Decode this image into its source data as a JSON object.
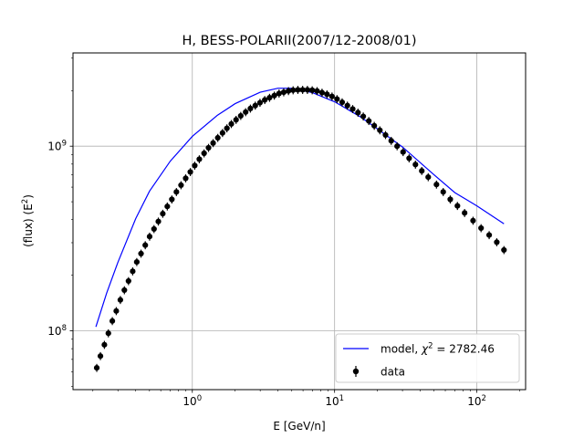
{
  "chart_data": {
    "type": "scatter",
    "title": "H, BESS-POLARII(2007/12-2008/01)",
    "xlabel": "E [GeV/n]",
    "ylabel": "(flux)  (E",
    "ylabel_sup": "2",
    "ylabel_tail": ")",
    "xscale": "log",
    "yscale": "log",
    "xlim": [
      0.145,
      220
    ],
    "ylim": [
      48000000,
      3200000000
    ],
    "grid": true,
    "legend_position": "lower-right",
    "x_ticks": [
      {
        "value": 1,
        "base": "10",
        "exp": "0"
      },
      {
        "value": 10,
        "base": "10",
        "exp": "1"
      },
      {
        "value": 100,
        "base": "10",
        "exp": "2"
      }
    ],
    "y_ticks": [
      {
        "value": 100000000,
        "base": "10",
        "exp": "8"
      },
      {
        "value": 1000000000,
        "base": "10",
        "exp": "9"
      }
    ],
    "series": [
      {
        "name": "model",
        "legend_label": "model, ",
        "legend_chi": "χ",
        "legend_chi_sup": "2",
        "legend_value": " = 2782.46",
        "style": "line",
        "color": "#0000ff",
        "x": [
          0.21,
          0.25,
          0.3,
          0.4,
          0.5,
          0.7,
          1.0,
          1.5,
          2.0,
          3.0,
          4.0,
          5.0,
          7.0,
          10.0,
          15.0,
          20.0,
          30.0,
          50.0,
          70.0,
          100.0,
          155.0
        ],
        "y": [
          105000000,
          160000000,
          235000000,
          405000000,
          570000000,
          830000000,
          1130000000,
          1470000000,
          1700000000,
          1960000000,
          2060000000,
          2060000000,
          1950000000,
          1740000000,
          1450000000,
          1240000000,
          990000000,
          700000000,
          560000000,
          475000000,
          380000000
        ]
      },
      {
        "name": "data",
        "legend_label": "data",
        "style": "errorbar",
        "color": "#000000",
        "x": [
          0.213,
          0.226,
          0.241,
          0.257,
          0.274,
          0.292,
          0.312,
          0.333,
          0.356,
          0.381,
          0.407,
          0.436,
          0.467,
          0.501,
          0.538,
          0.577,
          0.62,
          0.667,
          0.718,
          0.773,
          0.833,
          0.898,
          0.968,
          1.04,
          1.12,
          1.21,
          1.3,
          1.4,
          1.51,
          1.63,
          1.75,
          1.88,
          2.03,
          2.19,
          2.37,
          2.56,
          2.77,
          2.99,
          3.23,
          3.49,
          3.77,
          4.07,
          4.39,
          4.74,
          5.11,
          5.52,
          5.96,
          6.44,
          6.96,
          7.53,
          8.16,
          8.84,
          9.59,
          10.4,
          11.3,
          12.3,
          13.4,
          14.6,
          15.9,
          17.4,
          19.0,
          20.8,
          22.8,
          25.0,
          27.5,
          30.3,
          33.4,
          37.0,
          41.0,
          45.5,
          52.0,
          58.0,
          65.0,
          73.0,
          82.0,
          94.0,
          107.0,
          122.0,
          138.0,
          155.0
        ],
        "y": [
          63000000,
          73000000,
          84000000,
          97000000,
          113000000,
          128000000,
          147000000,
          166000000,
          186000000,
          210000000,
          236000000,
          262000000,
          291000000,
          324000000,
          356000000,
          391000000,
          431000000,
          472000000,
          515000000,
          565000000,
          615000000,
          670000000,
          725000000,
          785000000,
          850000000,
          915000000,
          980000000,
          1040000000,
          1110000000,
          1180000000,
          1250000000,
          1320000000,
          1390000000,
          1460000000,
          1530000000,
          1600000000,
          1660000000,
          1720000000,
          1780000000,
          1830000000,
          1880000000,
          1930000000,
          1960000000,
          1990000000,
          2010000000,
          2020000000,
          2020000000,
          2020000000,
          2010000000,
          1990000000,
          1950000000,
          1910000000,
          1860000000,
          1800000000,
          1730000000,
          1660000000,
          1590000000,
          1520000000,
          1450000000,
          1370000000,
          1290000000,
          1220000000,
          1150000000,
          1070000000,
          1000000000,
          930000000,
          860000000,
          795000000,
          735000000,
          680000000,
          620000000,
          565000000,
          515000000,
          475000000,
          435000000,
          395000000,
          360000000,
          330000000,
          302000000,
          274000000
        ],
        "yerr_frac": 0.05
      }
    ]
  }
}
